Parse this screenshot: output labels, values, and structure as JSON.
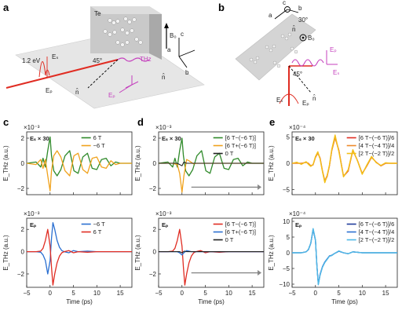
{
  "panel_labels": [
    "a",
    "b",
    "c",
    "d",
    "e"
  ],
  "schematic_a": {
    "crystal": "Te",
    "beam_energy": "1.2 eV",
    "angle": "45°",
    "field_b0": "B₀",
    "thz": "THz",
    "es_label": "Eₛ",
    "ep_label": "Eₚ",
    "n_label": "n̂",
    "axis_a": "a",
    "axis_b": "b",
    "axis_c": "c"
  },
  "schematic_b": {
    "axis_a": "a",
    "axis_b": "b",
    "axis_c": "c",
    "angle_top": "30°",
    "angle": "45°",
    "n_label": "n̂",
    "field_b0": "B₀",
    "es_label": "Eₛ",
    "ep_label": "Eₚ"
  },
  "chart_data": [
    {
      "id": "c-top",
      "type": "line",
      "scale_label": "×10⁻³",
      "annotation": "Eₛ × 30",
      "ylabel": "E_THz (a.u.)",
      "ylim": [
        -2.5,
        2.5
      ],
      "yticks": [
        -2,
        0,
        2
      ],
      "xlim": [
        -5,
        17.5
      ],
      "xticks": [
        -5,
        0,
        5,
        10,
        15
      ],
      "show_xticklabels": false,
      "series": [
        {
          "name": "6 T",
          "color": "#2f8a2a",
          "width": 1.3,
          "x": [
            -5,
            -3,
            -2,
            -1.5,
            -1,
            -0.5,
            0,
            0.3,
            0.8,
            1.5,
            2.3,
            3.2,
            4.2,
            5.1,
            6,
            7,
            8,
            9,
            10,
            11,
            12,
            13,
            14,
            15,
            16,
            17.5
          ],
          "y": [
            0,
            0.1,
            -0.3,
            0.4,
            -0.3,
            1.0,
            2.1,
            0.6,
            -0.6,
            -1.0,
            -0.5,
            0.6,
            1.0,
            -0.6,
            -0.8,
            0.5,
            0.8,
            -0.4,
            -0.5,
            0.3,
            0.4,
            -0.2,
            0.1,
            0,
            0,
            0
          ]
        },
        {
          "name": "−6 T",
          "color": "#f0a21c",
          "width": 1.3,
          "x": [
            -5,
            -3,
            -2,
            -1.5,
            -1,
            -0.5,
            0,
            0.3,
            0.8,
            1.5,
            2.3,
            3.2,
            4.2,
            5.1,
            6,
            7,
            8,
            9,
            10,
            11,
            12,
            13,
            14,
            15,
            16,
            17.5
          ],
          "y": [
            0,
            -0.1,
            0.3,
            -0.4,
            0.3,
            -1.0,
            -2.2,
            -0.6,
            0.6,
            1.0,
            0.5,
            -0.6,
            -1.0,
            0.6,
            0.8,
            -0.5,
            -0.8,
            0.4,
            0.5,
            -0.3,
            -0.4,
            0.2,
            -0.1,
            0,
            0,
            0
          ]
        }
      ]
    },
    {
      "id": "c-bot",
      "type": "line",
      "scale_label": "×10⁻³",
      "annotation": "Eₚ",
      "ylabel": "E_THz (a.u.)",
      "xlabel": "Time (ps)",
      "ylim": [
        -3.2,
        3.0
      ],
      "yticks": [
        -2,
        0,
        2
      ],
      "xlim": [
        -5,
        17.5
      ],
      "xticks": [
        -5,
        0,
        5,
        10,
        15
      ],
      "show_xticklabels": true,
      "series": [
        {
          "name": "−6 T",
          "color": "#2a6fd1",
          "width": 1.3,
          "x": [
            -5,
            -3,
            -2,
            -1.5,
            -1,
            -0.5,
            0,
            0.3,
            0.6,
            1,
            1.5,
            2,
            2.5,
            3,
            4,
            5,
            6,
            8,
            10,
            12,
            14,
            17.5
          ],
          "y": [
            0,
            0,
            -0.05,
            -0.3,
            -0.8,
            -2.0,
            -0.8,
            1.2,
            2.6,
            2.0,
            1.0,
            0.4,
            0.1,
            0,
            -0.1,
            0.1,
            0,
            0.05,
            0,
            0,
            0,
            0
          ]
        },
        {
          "name": "6 T",
          "color": "#e02c22",
          "width": 1.3,
          "x": [
            -5,
            -3,
            -2,
            -1.5,
            -1,
            -0.5,
            0,
            0.3,
            0.6,
            1,
            1.5,
            2,
            2.5,
            3,
            4,
            5,
            6,
            8,
            10,
            12,
            14,
            17.5
          ],
          "y": [
            0,
            0,
            0.05,
            0.3,
            1.0,
            2.0,
            0.5,
            -1.4,
            -3.0,
            -2.0,
            -1.0,
            -0.4,
            -0.1,
            0,
            0.1,
            -0.1,
            0,
            -0.05,
            0,
            0,
            0,
            0
          ]
        }
      ]
    },
    {
      "id": "d-top",
      "type": "line",
      "scale_label": "×10⁻³",
      "annotation": "Eₛ × 30",
      "ylabel": "E_THz (a.u.)",
      "ylim": [
        -2.5,
        2.5
      ],
      "yticks": [
        -2,
        0,
        2
      ],
      "xlim": [
        -5,
        17.5
      ],
      "xticks": [
        -5,
        0,
        5,
        10,
        15
      ],
      "show_xticklabels": false,
      "arrow": {
        "x_start": 2,
        "x_end": 17,
        "y": -1.9
      },
      "series": [
        {
          "name": "[6 T−(−6 T)]",
          "color": "#2f8a2a",
          "width": 1.3,
          "x": [
            -5,
            -3,
            -2,
            -1.5,
            -1,
            -0.5,
            0,
            0.3,
            0.8,
            1.5,
            2.3,
            3.2,
            4.2,
            5.1,
            6,
            7,
            8,
            9,
            10,
            11,
            12,
            13,
            14,
            15,
            16,
            17.5
          ],
          "y": [
            0,
            0.1,
            -0.3,
            0.4,
            -0.3,
            1.0,
            2.0,
            0.6,
            -0.6,
            -1.0,
            -0.5,
            0.6,
            1.0,
            -0.6,
            -0.8,
            0.5,
            0.8,
            -0.4,
            -0.5,
            0.3,
            0.4,
            -0.2,
            0.1,
            0,
            0,
            0
          ]
        },
        {
          "name": "[6 T+(−6 T)]",
          "color": "#f0a21c",
          "width": 1.3,
          "x": [
            -5,
            -2,
            -1,
            -0.5,
            0,
            0.4,
            1,
            1.5,
            2.5,
            3,
            4,
            6,
            10,
            17.5
          ],
          "y": [
            0,
            0,
            -0.1,
            -0.8,
            -2.3,
            -1.0,
            0.3,
            0.2,
            -0.05,
            0,
            0,
            0,
            0,
            0
          ]
        },
        {
          "name": "0 T",
          "color": "#222222",
          "width": 1.1,
          "x": [
            -5,
            -1,
            -0.5,
            0,
            0.4,
            1,
            2,
            4,
            17.5
          ],
          "y": [
            0,
            0,
            -0.1,
            -0.2,
            0.1,
            0,
            0,
            0,
            0
          ]
        }
      ]
    },
    {
      "id": "d-bot",
      "type": "line",
      "scale_label": "×10⁻³",
      "annotation": "Eₚ",
      "ylabel": "E_THz (a.u.)",
      "xlabel": "Time (ps)",
      "ylim": [
        -3.2,
        3.0
      ],
      "yticks": [
        -2,
        0,
        2
      ],
      "xlim": [
        -5,
        17.5
      ],
      "xticks": [
        -5,
        0,
        5,
        10,
        15
      ],
      "show_xticklabels": true,
      "arrow": {
        "x_start": 2,
        "x_end": 17,
        "y": -1.9
      },
      "series": [
        {
          "name": "[6 T−(−6 T)]",
          "color": "#e02c22",
          "width": 1.3,
          "x": [
            -5,
            -3,
            -2,
            -1.5,
            -1,
            -0.5,
            0,
            0.3,
            0.6,
            1,
            1.5,
            2,
            2.5,
            3,
            4,
            5,
            6,
            8,
            10,
            12,
            14,
            17.5
          ],
          "y": [
            0,
            0,
            0.05,
            0.3,
            1.0,
            2.0,
            0.5,
            -1.4,
            -3.0,
            -2.0,
            -1.0,
            -0.4,
            -0.1,
            0,
            0.1,
            -0.1,
            0,
            -0.05,
            0,
            0,
            0,
            0
          ]
        },
        {
          "name": "[6 T+(−6 T)]",
          "color": "#2a6fd1",
          "width": 1.3,
          "x": [
            -5,
            -2,
            -1,
            -0.5,
            0,
            0.4,
            1,
            1.5,
            2,
            3,
            17.5
          ],
          "y": [
            0,
            0,
            0,
            -0.1,
            -0.3,
            -0.1,
            0.1,
            0.05,
            0,
            0,
            0
          ]
        },
        {
          "name": "0 T",
          "color": "#222222",
          "width": 1.1,
          "x": [
            -5,
            -1,
            -0.5,
            0,
            0.5,
            1,
            2,
            17.5
          ],
          "y": [
            0,
            0,
            0,
            -0.1,
            0.05,
            0,
            0,
            0
          ]
        }
      ]
    },
    {
      "id": "e-top",
      "type": "line",
      "scale_label": "×10⁻⁴",
      "annotation": "Eₛ × 30",
      "ylabel": "E_THz (a.u.)",
      "ylim": [
        -6,
        6
      ],
      "yticks": [
        -5,
        0,
        5
      ],
      "xlim": [
        -5,
        17.5
      ],
      "xticks": [
        -5,
        0,
        5,
        10,
        15
      ],
      "show_xticklabels": false,
      "series": [
        {
          "name": "[6 T−(−6 T)]/6",
          "color": "#e02c22",
          "width": 1.3,
          "x": [
            -5,
            -3,
            -2,
            -1.5,
            -1,
            -0.5,
            0,
            0.5,
            1,
            1.5,
            2,
            2.5,
            3,
            3.5,
            4.2,
            5,
            6,
            7,
            8,
            9,
            10,
            11,
            12,
            13,
            14,
            15,
            16,
            17.5
          ],
          "y": [
            0,
            0,
            0.2,
            0,
            -0.5,
            -0.3,
            1.2,
            2.0,
            1.0,
            -1.5,
            -3.5,
            -2.5,
            -0.5,
            2.5,
            5.0,
            2.5,
            -2.5,
            -1.5,
            2.5,
            0.5,
            -2.0,
            -0.5,
            1.2,
            0.2,
            -0.5,
            0,
            0,
            0
          ]
        },
        {
          "name": "[4 T−(−4 T)]/4",
          "color": "#ee8a2a",
          "width": 1.3,
          "x": [
            -5,
            -3,
            -2,
            -1.5,
            -1,
            -0.5,
            0,
            0.5,
            1,
            1.5,
            2,
            2.5,
            3,
            3.5,
            4.2,
            5,
            6,
            7,
            8,
            9,
            10,
            11,
            12,
            13,
            14,
            15,
            16,
            17.5
          ],
          "y": [
            0,
            0,
            0.15,
            0,
            -0.45,
            -0.25,
            1.1,
            1.9,
            0.9,
            -1.4,
            -3.3,
            -2.3,
            -0.5,
            2.4,
            4.8,
            2.4,
            -2.4,
            -1.4,
            2.4,
            0.5,
            -1.9,
            -0.5,
            1.1,
            0.2,
            -0.5,
            0,
            0,
            0
          ]
        },
        {
          "name": "[2 T−(−2 T)]/2",
          "color": "#f3c019",
          "width": 1.4,
          "x": [
            -5,
            -4,
            -3,
            -2,
            -1.5,
            -1,
            -0.5,
            0,
            0.5,
            1,
            1.5,
            2,
            2.5,
            3,
            3.5,
            4.2,
            5,
            6,
            7,
            8,
            9,
            10,
            11,
            12,
            13,
            14,
            15,
            16,
            17.5
          ],
          "y": [
            0,
            0.2,
            -0.2,
            0.3,
            -0.2,
            -0.6,
            -0.2,
            1.3,
            2.2,
            0.8,
            -1.6,
            -3.7,
            -2.3,
            -0.3,
            2.7,
            5.4,
            2.2,
            -2.6,
            -1.2,
            2.6,
            0.4,
            -2.1,
            -0.3,
            1.3,
            0.1,
            -0.4,
            0.1,
            0,
            0
          ]
        }
      ]
    },
    {
      "id": "e-bot",
      "type": "line",
      "scale_label": "×10⁻⁴",
      "annotation": "Eₚ",
      "ylabel": "E_THz (a.u.)",
      "xlabel": "Time (ps)",
      "ylim": [
        -11,
        11
      ],
      "yticks": [
        -10,
        -5,
        0,
        5,
        10
      ],
      "xlim": [
        -5,
        17.5
      ],
      "xticks": [
        -5,
        0,
        5,
        10,
        15
      ],
      "show_xticklabels": true,
      "series": [
        {
          "name": "[6 T−(−6 T)]/6",
          "color": "#1f3c9a",
          "width": 1.3,
          "x": [
            -5,
            -3,
            -2,
            -1.5,
            -1,
            -0.5,
            0,
            0.3,
            0.6,
            1,
            1.5,
            2,
            2.5,
            3,
            3.5,
            4,
            5,
            6,
            7,
            8,
            10,
            12,
            14,
            17.5
          ],
          "y": [
            0,
            0,
            0.3,
            1.0,
            3.0,
            7.5,
            4.0,
            -4.0,
            -10.0,
            -7.0,
            -4.5,
            -3.0,
            -2.0,
            -1.0,
            -0.8,
            -0.3,
            0.5,
            0,
            -0.3,
            0.3,
            0,
            0,
            0,
            0
          ]
        },
        {
          "name": "[4 T−(−4 T)]/4",
          "color": "#2a6fd1",
          "width": 1.3,
          "x": [
            -5,
            -3,
            -2,
            -1.5,
            -1,
            -0.5,
            0,
            0.3,
            0.6,
            1,
            1.5,
            2,
            2.5,
            3,
            3.5,
            4,
            5,
            6,
            7,
            8,
            10,
            12,
            14,
            17.5
          ],
          "y": [
            0,
            0,
            0.3,
            1.0,
            3.0,
            7.4,
            3.9,
            -4.0,
            -9.8,
            -6.8,
            -4.4,
            -2.9,
            -1.9,
            -1.0,
            -0.8,
            -0.3,
            0.5,
            0,
            -0.3,
            0.3,
            0,
            0,
            0,
            0
          ]
        },
        {
          "name": "[2 T−(−2 T)]/2",
          "color": "#4fb8e6",
          "width": 1.4,
          "x": [
            -5,
            -3,
            -2,
            -1.5,
            -1,
            -0.5,
            0,
            0.3,
            0.6,
            1,
            1.5,
            2,
            2.5,
            3,
            3.5,
            4,
            5,
            6,
            7,
            8,
            10,
            12,
            14,
            17.5
          ],
          "y": [
            0,
            0,
            0.3,
            1.1,
            3.1,
            7.7,
            4.1,
            -4.1,
            -10.2,
            -7.1,
            -4.6,
            -3.1,
            -2.1,
            -1.1,
            -0.9,
            -0.3,
            0.6,
            0,
            -0.3,
            0.3,
            0,
            0,
            0,
            0
          ]
        }
      ]
    }
  ]
}
